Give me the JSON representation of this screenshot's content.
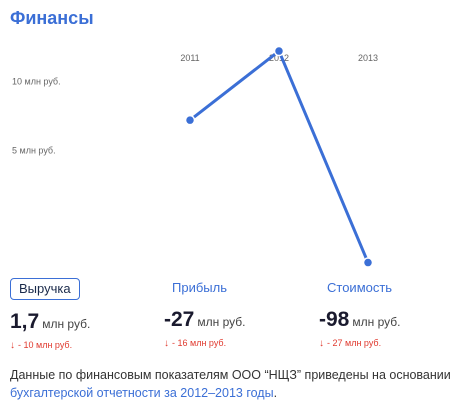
{
  "title": "Финансы",
  "chart_data": {
    "type": "line",
    "x": [
      "2011",
      "2012",
      "2013"
    ],
    "series": [
      {
        "values": [
          7.2,
          12.2,
          -3.1
        ]
      }
    ],
    "y_ticks": [
      {
        "value": 10,
        "label": "10 млн руб."
      },
      {
        "value": 5,
        "label": "5 млн руб."
      }
    ],
    "ylim": [
      -4,
      13
    ],
    "grid": false,
    "color": "#3b6fd6"
  },
  "metrics": [
    {
      "label": "Выручка",
      "value": "1,7",
      "unit": "млн руб.",
      "delta": "- 10 млн руб.",
      "active": true
    },
    {
      "label": "Прибыль",
      "value": "-27",
      "unit": "млн руб.",
      "delta": "- 16 млн руб.",
      "active": false
    },
    {
      "label": "Стоимость",
      "value": "-98",
      "unit": "млн руб.",
      "delta": "- 27 млн руб.",
      "active": false
    }
  ],
  "footer": {
    "text": "Данные по финансовым показателям ООО “НЩЗ” приведены на основании ",
    "link": "бухгалтерской отчетности за 2012–2013 годы",
    "end": "."
  },
  "colors": {
    "accent": "#3b6fd6",
    "negative": "#e03a2f"
  }
}
